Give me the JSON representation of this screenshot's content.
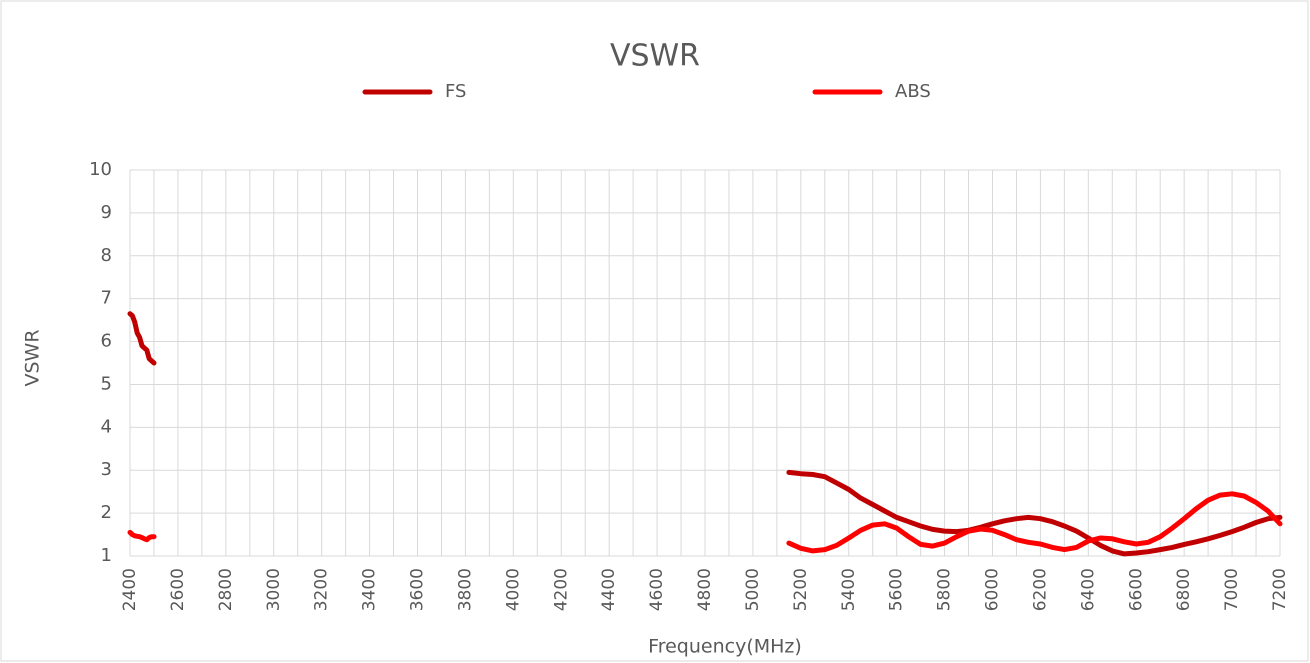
{
  "chart_data": {
    "type": "line",
    "title": "VSWR",
    "x_label": "Frequency(MHz)",
    "y_label": "VSWR",
    "x": [
      2400,
      2410,
      2420,
      2430,
      2440,
      2450,
      2460,
      2470,
      2480,
      2490,
      2500,
      null,
      5150,
      5200,
      5250,
      5300,
      5350,
      5400,
      5450,
      5500,
      5550,
      5600,
      5650,
      5700,
      5750,
      5800,
      5850,
      5900,
      5950,
      6000,
      6050,
      6100,
      6150,
      6200,
      6250,
      6300,
      6350,
      6400,
      6450,
      6500,
      6550,
      6600,
      6650,
      6700,
      6750,
      6800,
      6850,
      6900,
      6950,
      7000,
      7050,
      7100,
      7150,
      7200
    ],
    "series": [
      {
        "name": "FS",
        "color": "#c00000",
        "values": [
          6.65,
          6.6,
          6.45,
          6.2,
          6.1,
          5.9,
          5.85,
          5.8,
          5.6,
          5.55,
          5.5,
          null,
          2.95,
          2.92,
          2.9,
          2.85,
          2.7,
          2.55,
          2.35,
          2.2,
          2.05,
          1.9,
          1.8,
          1.7,
          1.62,
          1.58,
          1.57,
          1.6,
          1.67,
          1.75,
          1.82,
          1.87,
          1.9,
          1.87,
          1.8,
          1.7,
          1.58,
          1.42,
          1.25,
          1.12,
          1.05,
          1.07,
          1.1,
          1.15,
          1.2,
          1.27,
          1.33,
          1.4,
          1.48,
          1.57,
          1.67,
          1.78,
          1.87,
          1.9
        ]
      },
      {
        "name": "ABS",
        "color": "#ff0000",
        "values": [
          1.55,
          1.5,
          1.47,
          1.46,
          1.45,
          1.43,
          1.4,
          1.38,
          1.43,
          1.45,
          1.45,
          null,
          1.3,
          1.18,
          1.12,
          1.15,
          1.25,
          1.42,
          1.6,
          1.72,
          1.75,
          1.65,
          1.45,
          1.27,
          1.23,
          1.3,
          1.45,
          1.58,
          1.63,
          1.6,
          1.5,
          1.38,
          1.32,
          1.28,
          1.2,
          1.15,
          1.2,
          1.35,
          1.42,
          1.4,
          1.33,
          1.28,
          1.32,
          1.45,
          1.65,
          1.87,
          2.1,
          2.3,
          2.42,
          2.45,
          2.4,
          2.25,
          2.05,
          1.75
        ]
      }
    ],
    "xlim": [
      2400,
      7200
    ],
    "xticks": [
      2400,
      2600,
      2800,
      3000,
      3200,
      3400,
      3600,
      3800,
      4000,
      4200,
      4400,
      4600,
      4800,
      5000,
      5200,
      5400,
      5600,
      5800,
      6000,
      6200,
      6400,
      6600,
      6800,
      7000,
      7200
    ],
    "ylim": [
      1,
      10
    ],
    "yticks": [
      1,
      2,
      3,
      4,
      5,
      6,
      7,
      8,
      9,
      10
    ],
    "grid": true,
    "legend": "top"
  }
}
